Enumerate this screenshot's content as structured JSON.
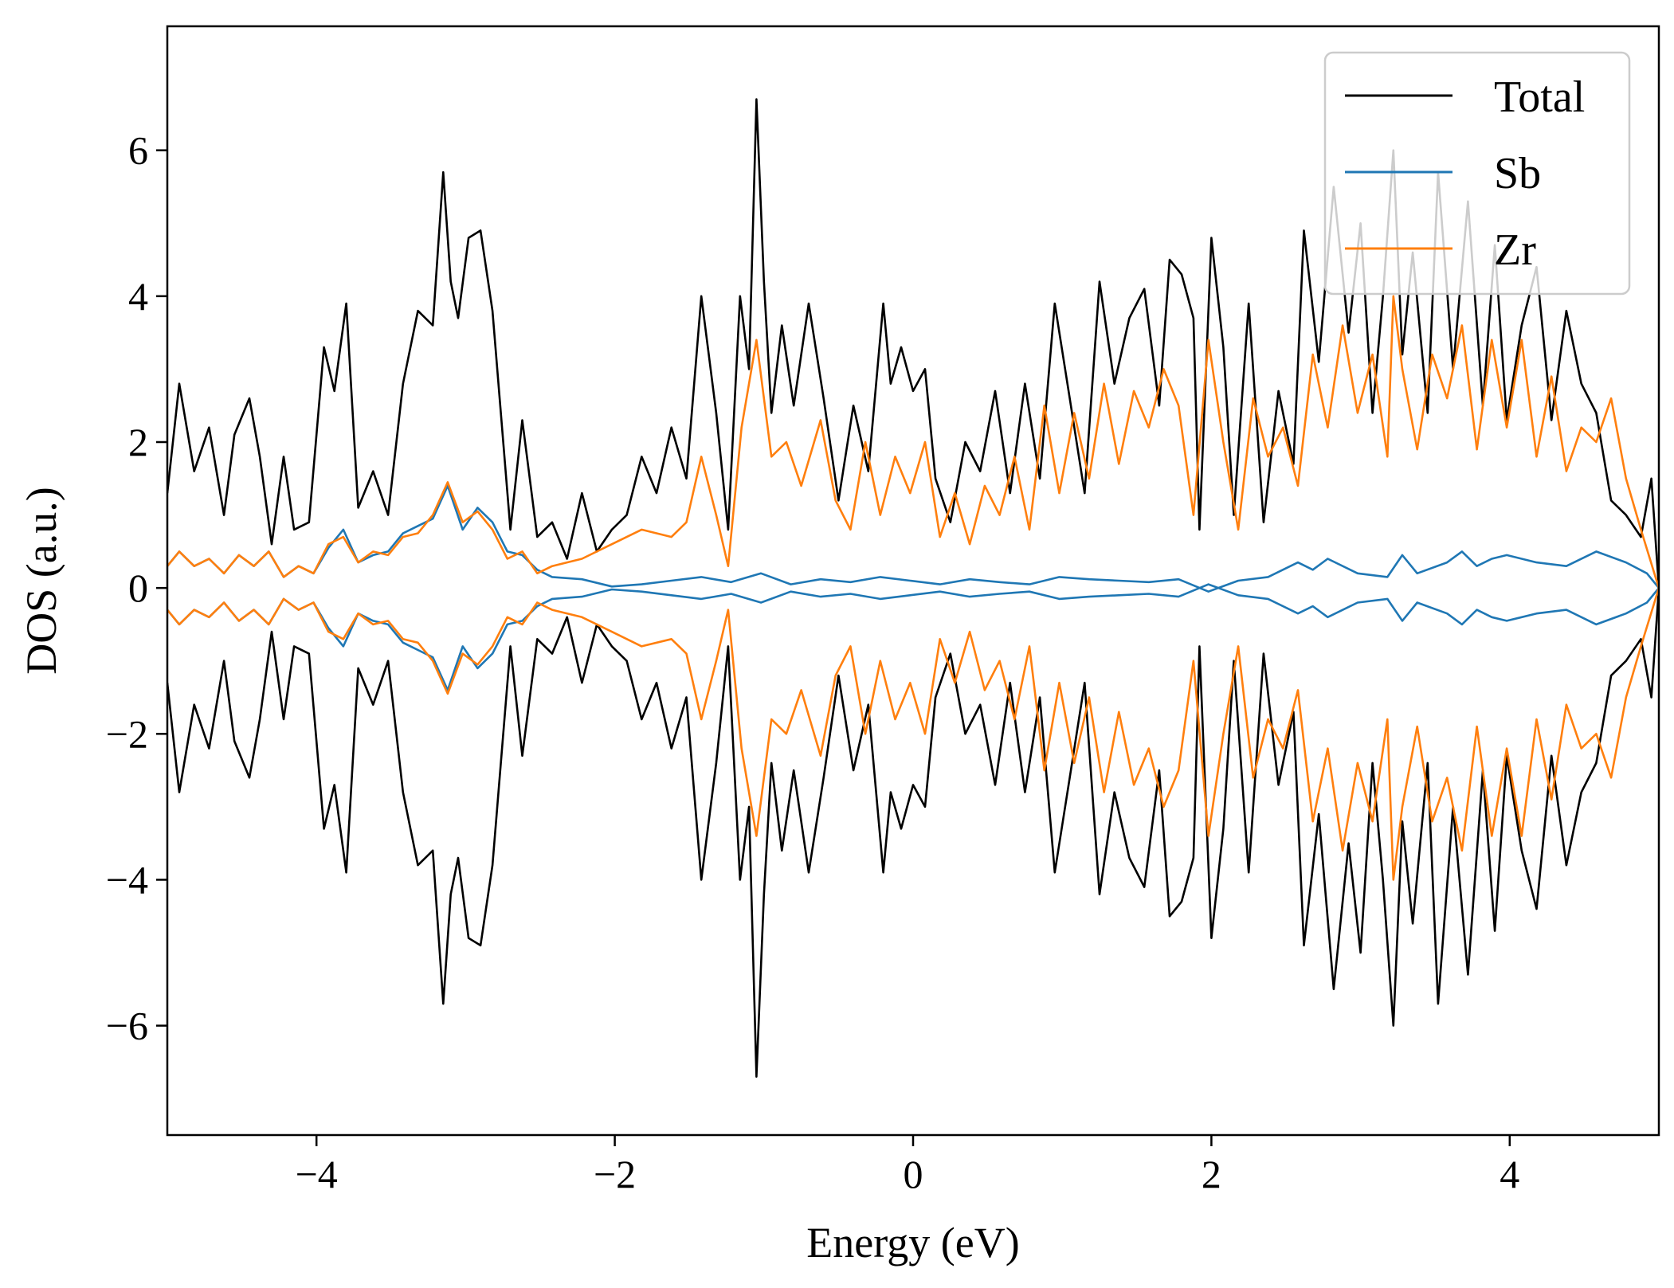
{
  "chart_data": {
    "type": "line",
    "title": "",
    "xlabel": "Energy (eV)",
    "ylabel": "DOS (a.u.)",
    "xlim": [
      -5,
      5
    ],
    "ylim": [
      -7.5,
      7.7
    ],
    "xticks": [
      -4,
      -2,
      0,
      2,
      4
    ],
    "yticks": [
      -6,
      -4,
      -2,
      0,
      2,
      4,
      6
    ],
    "xtick_labels": [
      "−4",
      "−2",
      "0",
      "2",
      "4"
    ],
    "ytick_labels": [
      "−6",
      "−4",
      "−2",
      "0",
      "2",
      "4",
      "6"
    ],
    "grid": false,
    "legend": {
      "position": "top-right",
      "entries": [
        "Total",
        "Sb",
        "Zr"
      ]
    },
    "mirrored_spin_channels": true,
    "series": [
      {
        "name": "Total",
        "color": "#000000",
        "x": [
          -5.0,
          -4.92,
          -4.82,
          -4.72,
          -4.62,
          -4.55,
          -4.45,
          -4.38,
          -4.3,
          -4.22,
          -4.15,
          -4.05,
          -3.95,
          -3.88,
          -3.8,
          -3.72,
          -3.62,
          -3.52,
          -3.42,
          -3.32,
          -3.22,
          -3.15,
          -3.1,
          -3.05,
          -2.98,
          -2.9,
          -2.82,
          -2.7,
          -2.62,
          -2.52,
          -2.42,
          -2.32,
          -2.22,
          -2.12,
          -2.02,
          -1.92,
          -1.82,
          -1.72,
          -1.62,
          -1.52,
          -1.42,
          -1.32,
          -1.24,
          -1.16,
          -1.1,
          -1.05,
          -1.0,
          -0.95,
          -0.88,
          -0.8,
          -0.7,
          -0.6,
          -0.5,
          -0.4,
          -0.3,
          -0.2,
          -0.15,
          -0.08,
          0.0,
          0.08,
          0.15,
          0.25,
          0.35,
          0.45,
          0.55,
          0.65,
          0.75,
          0.85,
          0.95,
          1.05,
          1.15,
          1.25,
          1.35,
          1.45,
          1.55,
          1.65,
          1.72,
          1.8,
          1.88,
          1.92,
          2.0,
          2.08,
          2.15,
          2.25,
          2.35,
          2.45,
          2.55,
          2.62,
          2.72,
          2.82,
          2.92,
          3.0,
          3.08,
          3.15,
          3.22,
          3.28,
          3.35,
          3.45,
          3.52,
          3.62,
          3.72,
          3.82,
          3.9,
          3.98,
          4.08,
          4.18,
          4.28,
          4.38,
          4.48,
          4.58,
          4.68,
          4.78,
          4.88,
          4.95,
          5.0
        ],
        "y": [
          1.3,
          2.8,
          1.6,
          2.2,
          1.0,
          2.1,
          2.6,
          1.8,
          0.6,
          1.8,
          0.8,
          0.9,
          3.3,
          2.7,
          3.9,
          1.1,
          1.6,
          1.0,
          2.8,
          3.8,
          3.6,
          5.7,
          4.2,
          3.7,
          4.8,
          4.9,
          3.8,
          0.8,
          2.3,
          0.7,
          0.9,
          0.4,
          1.3,
          0.5,
          0.8,
          1.0,
          1.8,
          1.3,
          2.2,
          1.5,
          4.0,
          2.4,
          0.8,
          4.0,
          3.0,
          6.7,
          4.2,
          2.4,
          3.6,
          2.5,
          3.9,
          2.6,
          1.2,
          2.5,
          1.6,
          3.9,
          2.8,
          3.3,
          2.7,
          3.0,
          1.5,
          0.9,
          2.0,
          1.6,
          2.7,
          1.3,
          2.8,
          1.5,
          3.9,
          2.6,
          1.3,
          4.2,
          2.8,
          3.7,
          4.1,
          2.5,
          4.5,
          4.3,
          3.7,
          0.8,
          4.8,
          3.3,
          1.0,
          3.9,
          0.9,
          2.7,
          1.7,
          4.9,
          3.1,
          5.5,
          3.5,
          5.0,
          2.4,
          4.0,
          6.0,
          3.2,
          4.6,
          2.4,
          5.7,
          3.0,
          5.3,
          2.5,
          4.7,
          2.3,
          3.6,
          4.4,
          2.3,
          3.8,
          2.8,
          2.4,
          1.2,
          1.0,
          0.7,
          1.5,
          0.0
        ]
      },
      {
        "name": "Sb",
        "color": "#1f77b4",
        "x": [
          -5.0,
          -4.92,
          -4.82,
          -4.72,
          -4.62,
          -4.52,
          -4.42,
          -4.32,
          -4.22,
          -4.12,
          -4.02,
          -3.92,
          -3.82,
          -3.72,
          -3.62,
          -3.52,
          -3.42,
          -3.32,
          -3.22,
          -3.12,
          -3.02,
          -2.92,
          -2.82,
          -2.72,
          -2.62,
          -2.52,
          -2.42,
          -2.22,
          -2.02,
          -1.82,
          -1.62,
          -1.42,
          -1.22,
          -1.02,
          -0.82,
          -0.62,
          -0.42,
          -0.22,
          -0.02,
          0.18,
          0.38,
          0.58,
          0.78,
          0.98,
          1.18,
          1.38,
          1.58,
          1.78,
          1.98,
          2.18,
          2.38,
          2.58,
          2.68,
          2.78,
          2.98,
          3.18,
          3.28,
          3.38,
          3.58,
          3.68,
          3.78,
          3.88,
          3.98,
          4.18,
          4.38,
          4.58,
          4.78,
          4.92,
          5.0
        ],
        "y": [
          0.3,
          0.5,
          0.3,
          0.4,
          0.2,
          0.45,
          0.3,
          0.5,
          0.15,
          0.3,
          0.2,
          0.55,
          0.8,
          0.35,
          0.45,
          0.5,
          0.75,
          0.85,
          0.95,
          1.4,
          0.8,
          1.1,
          0.9,
          0.5,
          0.45,
          0.25,
          0.15,
          0.12,
          0.02,
          0.05,
          0.1,
          0.15,
          0.08,
          0.2,
          0.05,
          0.12,
          0.08,
          0.15,
          0.1,
          0.05,
          0.12,
          0.08,
          0.05,
          0.15,
          0.12,
          0.1,
          0.08,
          0.12,
          -0.05,
          0.1,
          0.15,
          0.35,
          0.25,
          0.4,
          0.2,
          0.15,
          0.45,
          0.2,
          0.35,
          0.5,
          0.3,
          0.4,
          0.45,
          0.35,
          0.3,
          0.5,
          0.35,
          0.2,
          0.0
        ]
      },
      {
        "name": "Zr",
        "color": "#ff7f0e",
        "x": [
          -5.0,
          -4.92,
          -4.82,
          -4.72,
          -4.62,
          -4.52,
          -4.42,
          -4.32,
          -4.22,
          -4.12,
          -4.02,
          -3.92,
          -3.82,
          -3.72,
          -3.62,
          -3.52,
          -3.42,
          -3.32,
          -3.22,
          -3.12,
          -3.02,
          -2.92,
          -2.82,
          -2.72,
          -2.62,
          -2.52,
          -2.42,
          -2.22,
          -2.02,
          -1.82,
          -1.62,
          -1.52,
          -1.42,
          -1.32,
          -1.24,
          -1.15,
          -1.05,
          -0.95,
          -0.85,
          -0.75,
          -0.62,
          -0.52,
          -0.42,
          -0.32,
          -0.22,
          -0.12,
          -0.02,
          0.08,
          0.18,
          0.28,
          0.38,
          0.48,
          0.58,
          0.68,
          0.78,
          0.88,
          0.98,
          1.08,
          1.18,
          1.28,
          1.38,
          1.48,
          1.58,
          1.68,
          1.78,
          1.88,
          1.98,
          2.08,
          2.18,
          2.28,
          2.38,
          2.48,
          2.58,
          2.68,
          2.78,
          2.88,
          2.98,
          3.08,
          3.18,
          3.22,
          3.28,
          3.38,
          3.48,
          3.58,
          3.68,
          3.78,
          3.88,
          3.98,
          4.08,
          4.18,
          4.28,
          4.38,
          4.48,
          4.58,
          4.68,
          4.78,
          4.88,
          5.0
        ],
        "y": [
          0.3,
          0.5,
          0.3,
          0.4,
          0.2,
          0.45,
          0.3,
          0.5,
          0.15,
          0.3,
          0.2,
          0.6,
          0.7,
          0.35,
          0.5,
          0.45,
          0.7,
          0.75,
          1.0,
          1.45,
          0.9,
          1.05,
          0.8,
          0.4,
          0.5,
          0.2,
          0.3,
          0.4,
          0.6,
          0.8,
          0.7,
          0.9,
          1.8,
          1.0,
          0.3,
          2.2,
          3.4,
          1.8,
          2.0,
          1.4,
          2.3,
          1.2,
          0.8,
          2.0,
          1.0,
          1.8,
          1.3,
          2.0,
          0.7,
          1.3,
          0.6,
          1.4,
          1.0,
          1.8,
          0.8,
          2.5,
          1.3,
          2.4,
          1.5,
          2.8,
          1.7,
          2.7,
          2.2,
          3.0,
          2.5,
          1.0,
          3.4,
          2.0,
          0.8,
          2.6,
          1.8,
          2.2,
          1.4,
          3.2,
          2.2,
          3.6,
          2.4,
          3.2,
          1.8,
          4.0,
          3.0,
          1.9,
          3.2,
          2.6,
          3.6,
          1.9,
          3.4,
          2.2,
          3.4,
          1.8,
          2.9,
          1.6,
          2.2,
          2.0,
          2.6,
          1.5,
          0.8,
          0.0
        ]
      }
    ]
  }
}
